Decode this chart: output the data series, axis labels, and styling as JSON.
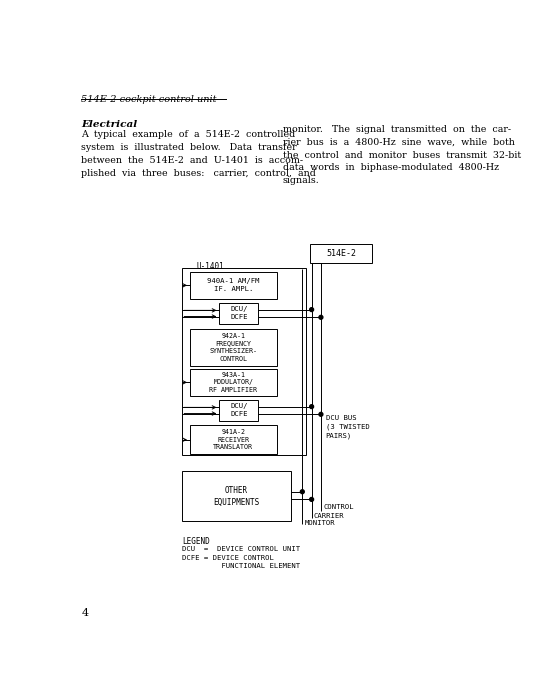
{
  "title_text": "514E-2 cockpit control unit",
  "section_title": "Electrical",
  "col1_lines": [
    "A  typical  example  of  a  514E-2  controlled",
    "system  is  illustrated  below.   Data  transfer",
    "between  the  514E-2  and  U-1401  is  accom-",
    "plished  via  three  buses:   carrier,  control,  and"
  ],
  "col2_lines": [
    "monitor.   The  signal  transmitted  on  the  car-",
    "rier  bus  is  a  4800-Hz  sine  wave,  while  both",
    "the  control  and  monitor  buses  transmit  32-bit",
    "data  words  in  biphase-modulated  4800-Hz",
    "signals."
  ],
  "page_number": "4"
}
